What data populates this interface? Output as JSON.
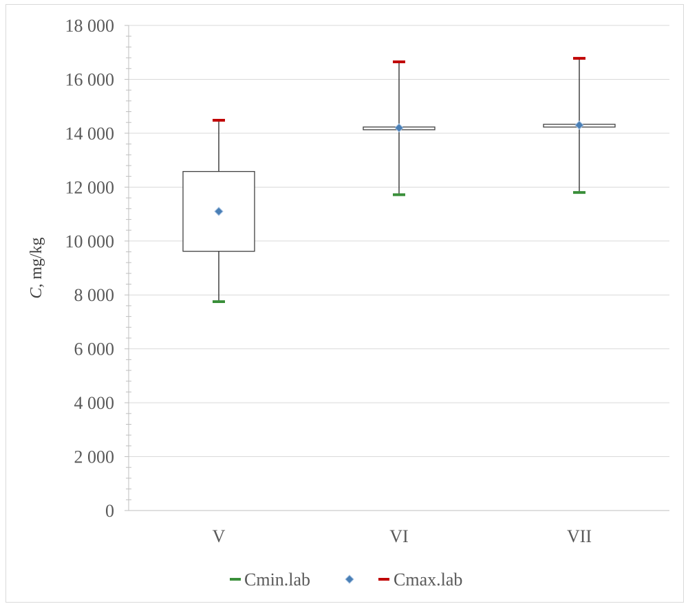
{
  "chart_data": {
    "type": "boxplot",
    "categories": [
      "V",
      "VI",
      "VII"
    ],
    "ylabel_symbol": "C",
    "ylabel_unit": ", mg/kg",
    "ylim": [
      0,
      18000
    ],
    "yticks": [
      0,
      2000,
      4000,
      6000,
      8000,
      10000,
      12000,
      14000,
      16000,
      18000
    ],
    "ytick_labels": [
      "0",
      "2 000",
      "4 000",
      "6 000",
      "8 000",
      "10 000",
      "12 000",
      "14 000",
      "16 000",
      "18 000"
    ],
    "grid": true,
    "legend_position": "bottom",
    "series": [
      {
        "name": "Cmin.lab",
        "marker": "dash",
        "color": "#3a8f3a",
        "values": [
          7750,
          11720,
          11800
        ]
      },
      {
        "name": "",
        "marker": "diamond",
        "color": "#4a7fb5",
        "values": [
          11100,
          14200,
          14300
        ]
      },
      {
        "name": "Cmax.lab",
        "marker": "dash",
        "color": "#c00000",
        "values": [
          14480,
          16650,
          16780
        ]
      }
    ],
    "boxes": [
      {
        "category": "V",
        "low": 9620,
        "high": 12580
      },
      {
        "category": "VI",
        "low": 14130,
        "high": 14230
      },
      {
        "category": "VII",
        "low": 14230,
        "high": 14330
      }
    ]
  }
}
